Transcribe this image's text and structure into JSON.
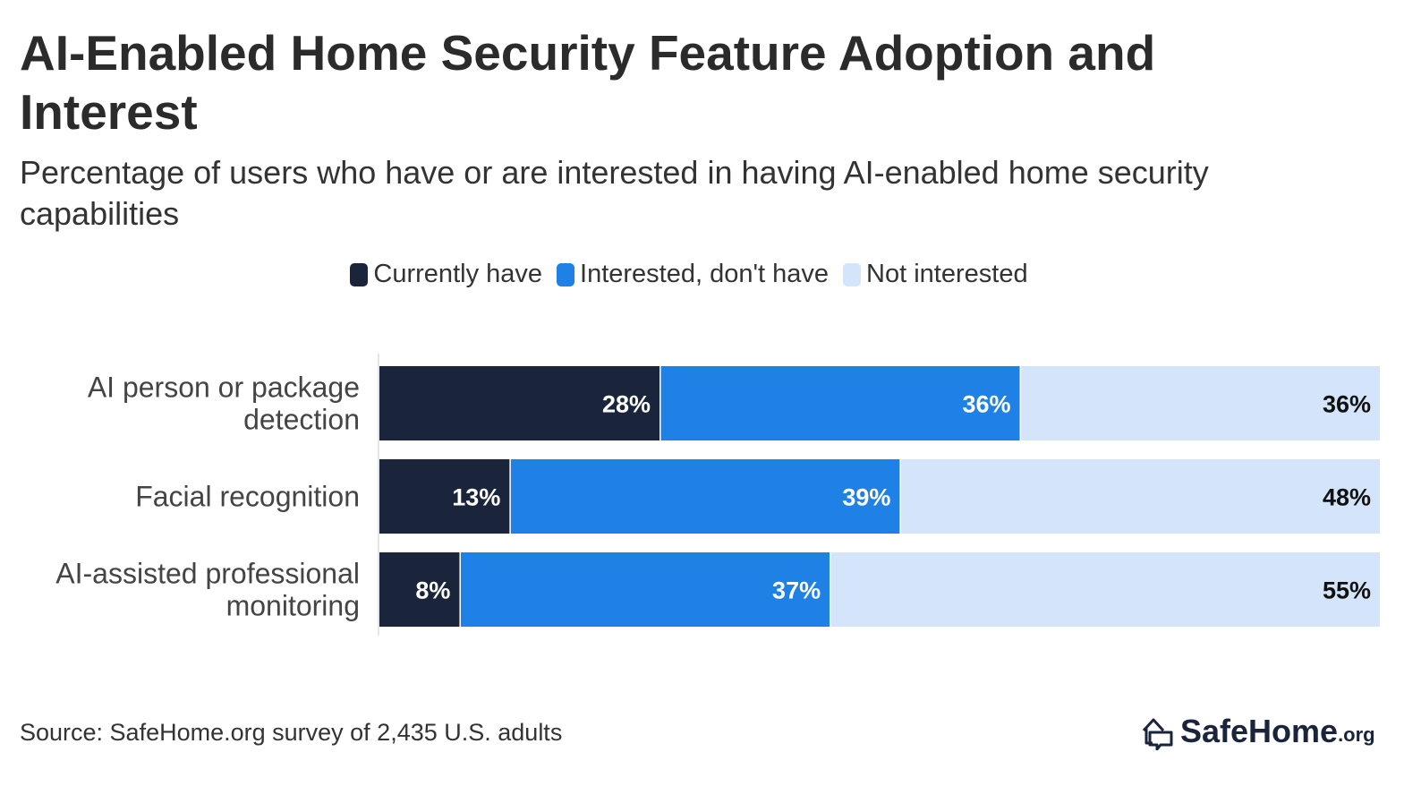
{
  "chart_data": {
    "type": "bar",
    "orientation": "horizontal",
    "stacked": true,
    "title": "AI-Enabled Home Security Feature Adoption and Interest",
    "subtitle": "Percentage of users who have or are interested in having AI-enabled home security capabilities",
    "categories": [
      [
        "AI person or package",
        "detection"
      ],
      [
        "Facial recognition"
      ],
      [
        "AI-assisted professional",
        "monitoring"
      ]
    ],
    "series": [
      {
        "name": "Currently have",
        "color": "#1a243b",
        "label_color": "#ffffff",
        "values": [
          28,
          13,
          8
        ]
      },
      {
        "name": "Interested, don't have",
        "color": "#1f80e6",
        "label_color": "#ffffff",
        "values": [
          36,
          39,
          37
        ]
      },
      {
        "name": "Not interested",
        "color": "#d4e5fb",
        "label_color": "#111111",
        "values": [
          36,
          48,
          55
        ]
      }
    ],
    "value_suffix": "%",
    "xlim": [
      0,
      100
    ],
    "legend_position": "top-center",
    "grid": false
  },
  "source": "Source: SafeHome.org survey of 2,435 U.S. adults",
  "logo": {
    "name": "SafeHome",
    "suffix": ".org"
  }
}
